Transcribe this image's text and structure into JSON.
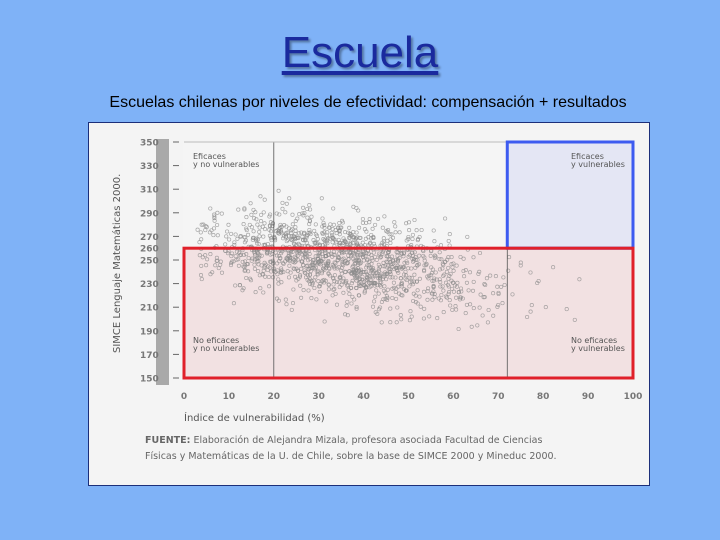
{
  "slide": {
    "title": "Escuela",
    "subtitle": "Escuelas chilenas por niveles de efectividad: compensación + resultados"
  },
  "colors": {
    "background": "#7fb2f7",
    "title": "#1a2a9e",
    "quadrant_blue": "#3d5bf0",
    "quadrant_red": "#e0202a",
    "points": "#8c8c8c"
  },
  "chart_data": {
    "type": "scatter",
    "title": "",
    "xlabel": "Índice de vulnerabilidad (%)",
    "ylabel": "SIMCE Lenguaje Matemáticas 2000.",
    "x_ticks": [
      "0",
      "10",
      "20",
      "30",
      "40",
      "50",
      "60",
      "70",
      "80",
      "90",
      "100"
    ],
    "y_ticks": [
      "350",
      "330",
      "310",
      "290",
      "270",
      "260",
      "250",
      "230",
      "210",
      "190",
      "170",
      "150"
    ],
    "xlim": [
      0,
      100
    ],
    "ylim": [
      150,
      350
    ],
    "grid": false,
    "cutoffs": {
      "x": [
        20,
        72
      ],
      "y": 260
    },
    "quadrant_labels": [
      {
        "line1": "Eficaces",
        "line2": "y no vulnerables"
      },
      {
        "line1": "Eficaces",
        "line2": "y vulnerables"
      },
      {
        "line1": "No eficaces",
        "line2": "y no vulnerables"
      },
      {
        "line1": "No eficaces",
        "line2": "y vulnerables"
      }
    ],
    "highlight_boxes": [
      {
        "name": "eficaces-y-vulnerables",
        "x": [
          72,
          100
        ],
        "y": [
          260,
          350
        ],
        "color": "#3d5bf0"
      },
      {
        "name": "no-eficaces",
        "x": [
          0,
          100
        ],
        "y": [
          150,
          260
        ],
        "color": "#e0202a"
      }
    ],
    "point_cloud": {
      "approx_count": 1400,
      "x_center": 35,
      "x_spread": 22,
      "y_center_at_x0": 268,
      "y_slope_per_pct": -0.5,
      "y_spread": 24
    }
  },
  "source_note": {
    "label": "FUENTE:",
    "text_line1": " Elaboración de Alejandra Mizala, profesora asociada Facultad de Ciencias",
    "text_line2": "Físicas y Matemáticas de la U. de Chile, sobre la base de SIMCE 2000 y Mineduc 2000."
  }
}
